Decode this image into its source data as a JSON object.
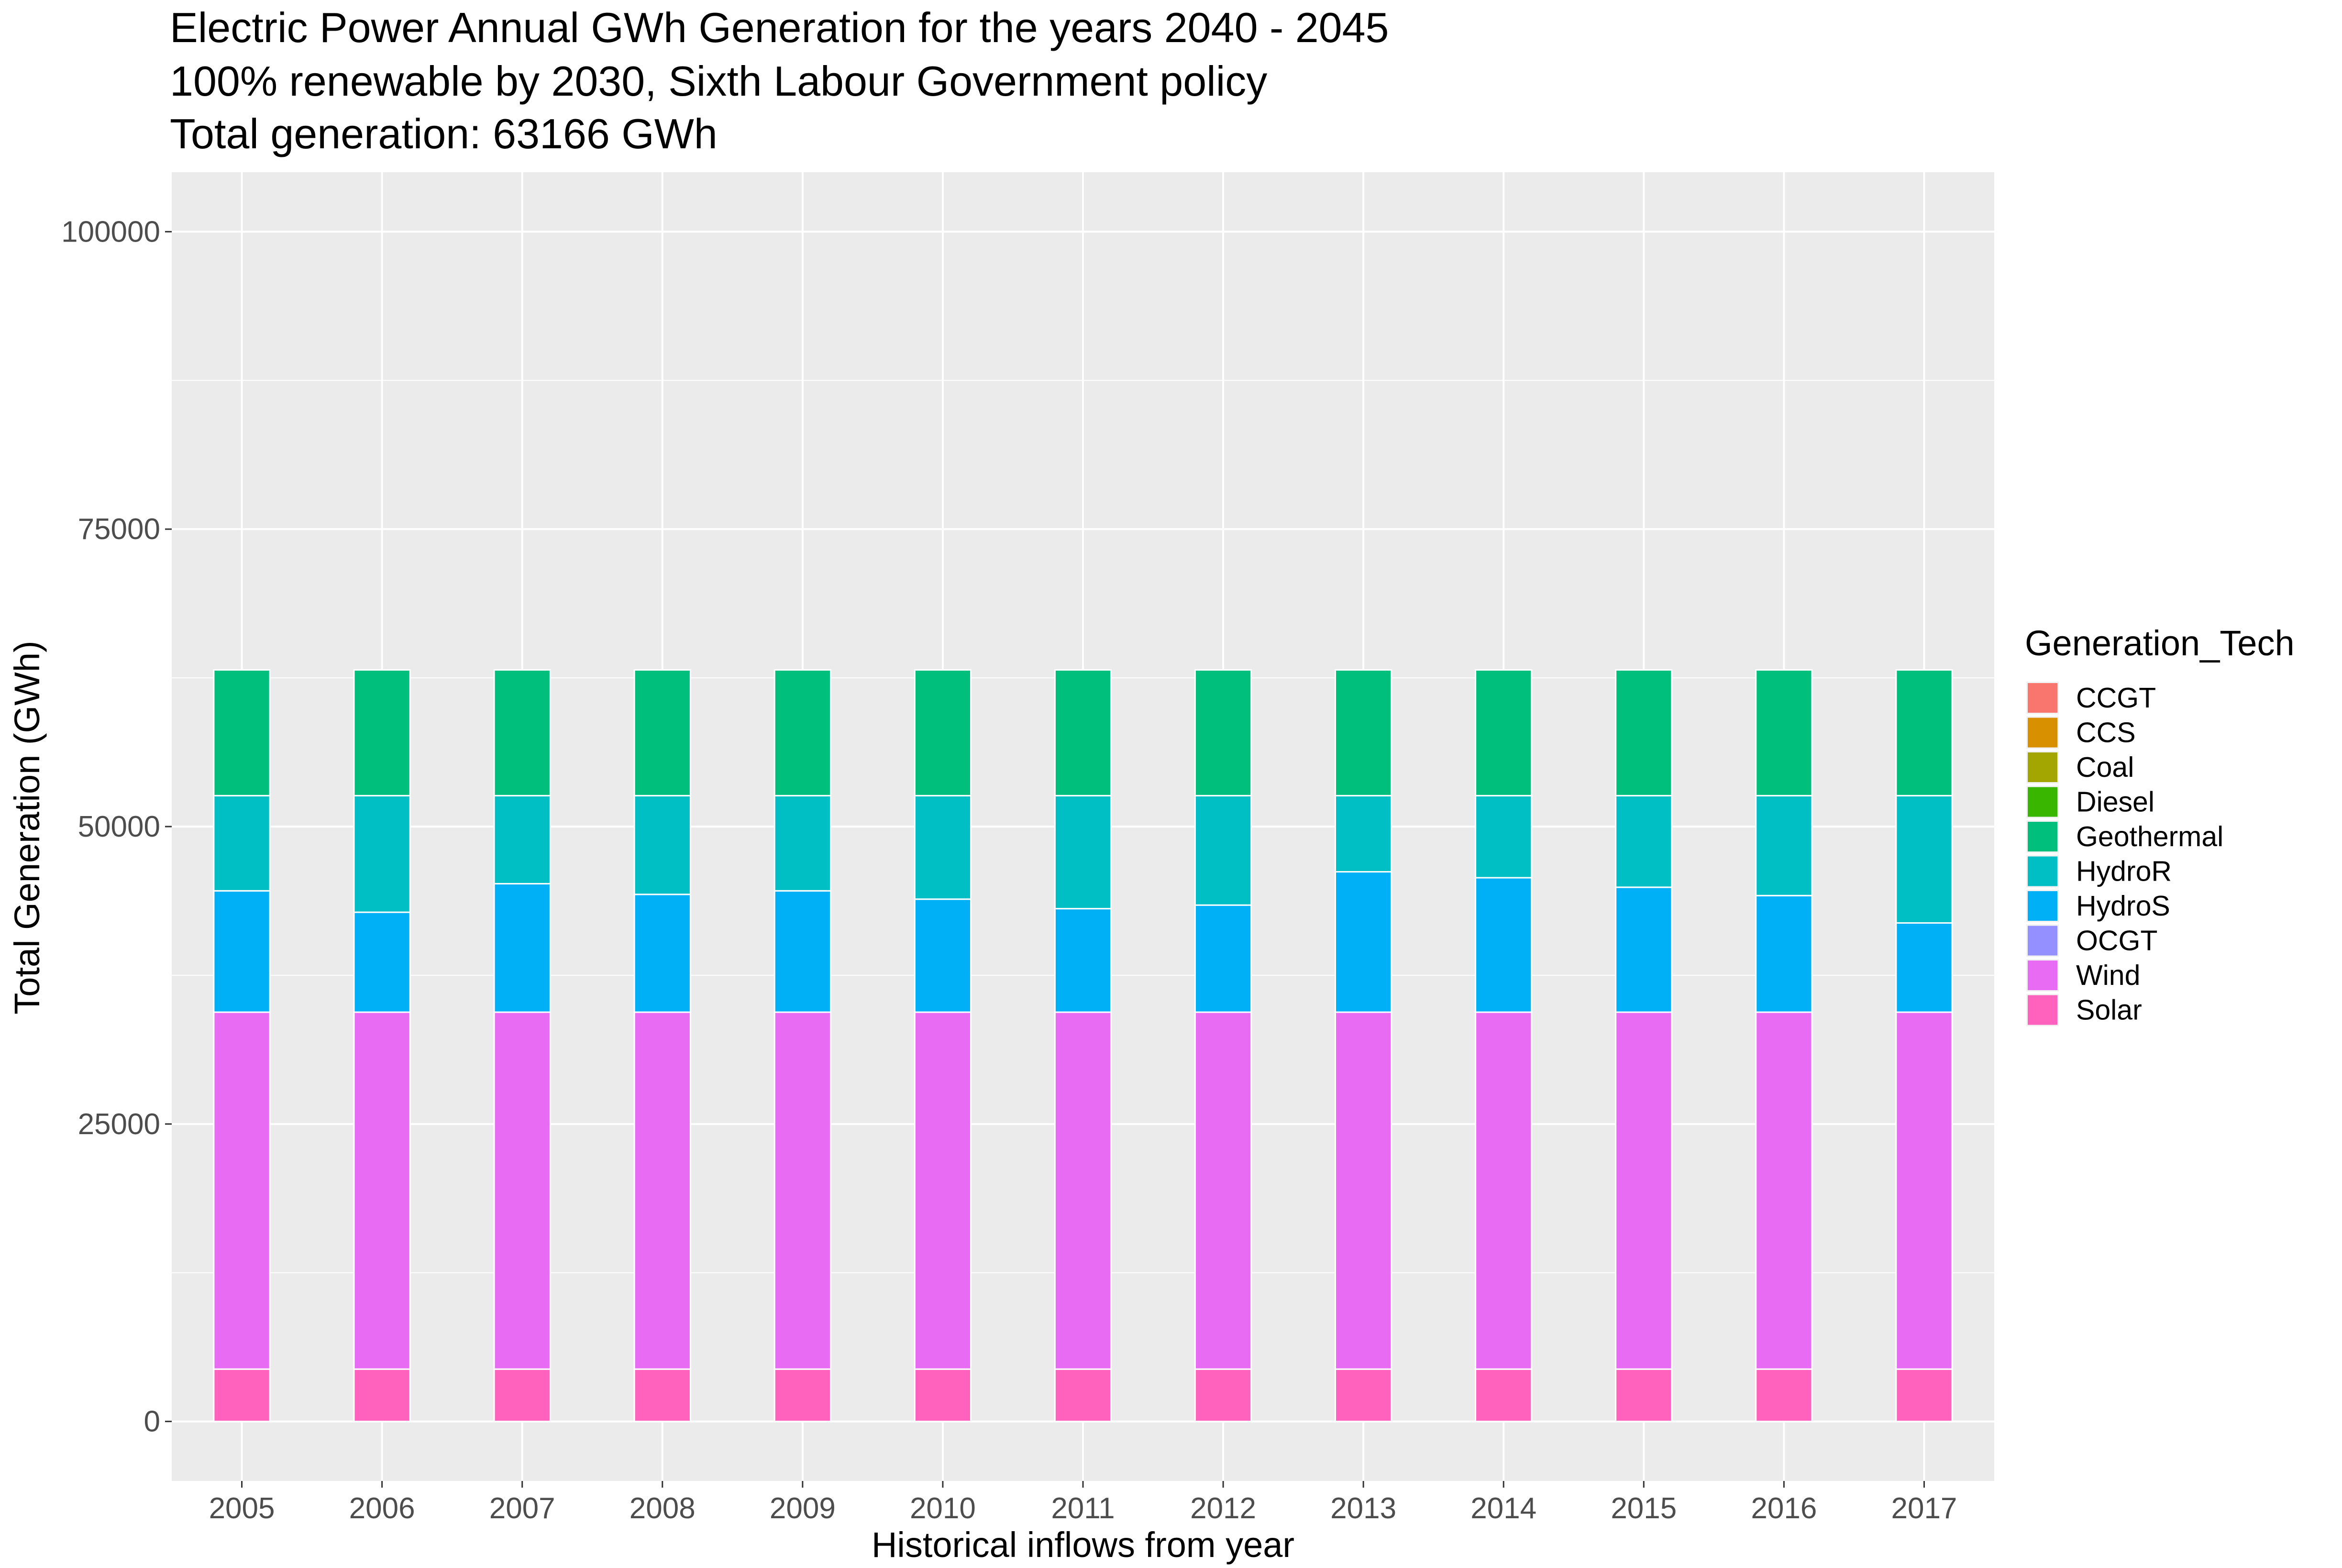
{
  "chart_data": {
    "type": "bar",
    "stacked": true,
    "title_lines": [
      "Electric Power Annual GWh Generation for the years 2040 - 2045",
      "100% renewable by 2030, Sixth Labour Government policy",
      "Total generation: 63166 GWh"
    ],
    "xlabel": "Historical inflows from year",
    "ylabel": "Total Generation (GWh)",
    "ylim": [
      -5000,
      105000
    ],
    "yticks": [
      0,
      25000,
      50000,
      75000,
      100000
    ],
    "ytick_labels": [
      "0",
      "25000",
      "50000",
      "75000",
      "100000"
    ],
    "grid": true,
    "legend_position": "right",
    "legend_title": "Generation_Tech",
    "categories": [
      "2005",
      "2006",
      "2007",
      "2008",
      "2009",
      "2010",
      "2011",
      "2012",
      "2013",
      "2014",
      "2015",
      "2016",
      "2017"
    ],
    "legend": [
      {
        "name": "CCGT",
        "color": "#F8766D"
      },
      {
        "name": "CCS",
        "color": "#D89000"
      },
      {
        "name": "Coal",
        "color": "#A3A500"
      },
      {
        "name": "Diesel",
        "color": "#39B600"
      },
      {
        "name": "Geothermal",
        "color": "#00BF7D"
      },
      {
        "name": "HydroR",
        "color": "#00BFC4"
      },
      {
        "name": "HydroS",
        "color": "#00B0F6"
      },
      {
        "name": "OCGT",
        "color": "#9590FF"
      },
      {
        "name": "Wind",
        "color": "#E76BF3"
      },
      {
        "name": "Solar",
        "color": "#FF62BC"
      }
    ],
    "series": [
      {
        "name": "Solar",
        "color": "#FF62BC",
        "values": [
          4400,
          4400,
          4400,
          4400,
          4400,
          4400,
          4400,
          4400,
          4400,
          4400,
          4400,
          4400,
          4400
        ]
      },
      {
        "name": "Wind",
        "color": "#E76BF3",
        "values": [
          30000,
          30000,
          30000,
          30000,
          30000,
          30000,
          30000,
          30000,
          30000,
          30000,
          30000,
          30000,
          30000
        ]
      },
      {
        "name": "HydroS",
        "color": "#00B0F6",
        "values": [
          10200,
          8400,
          10800,
          9900,
          10200,
          9500,
          8700,
          9000,
          11800,
          11300,
          10500,
          9800,
          7500
        ]
      },
      {
        "name": "HydroR",
        "color": "#00BFC4",
        "values": [
          8000,
          9800,
          7400,
          8300,
          8000,
          8700,
          9500,
          9200,
          6400,
          6900,
          7700,
          8400,
          10700
        ]
      },
      {
        "name": "Geothermal",
        "color": "#00BF7D",
        "values": [
          10566,
          10566,
          10566,
          10566,
          10566,
          10566,
          10566,
          10566,
          10566,
          10566,
          10566,
          10566,
          10566
        ]
      }
    ]
  }
}
